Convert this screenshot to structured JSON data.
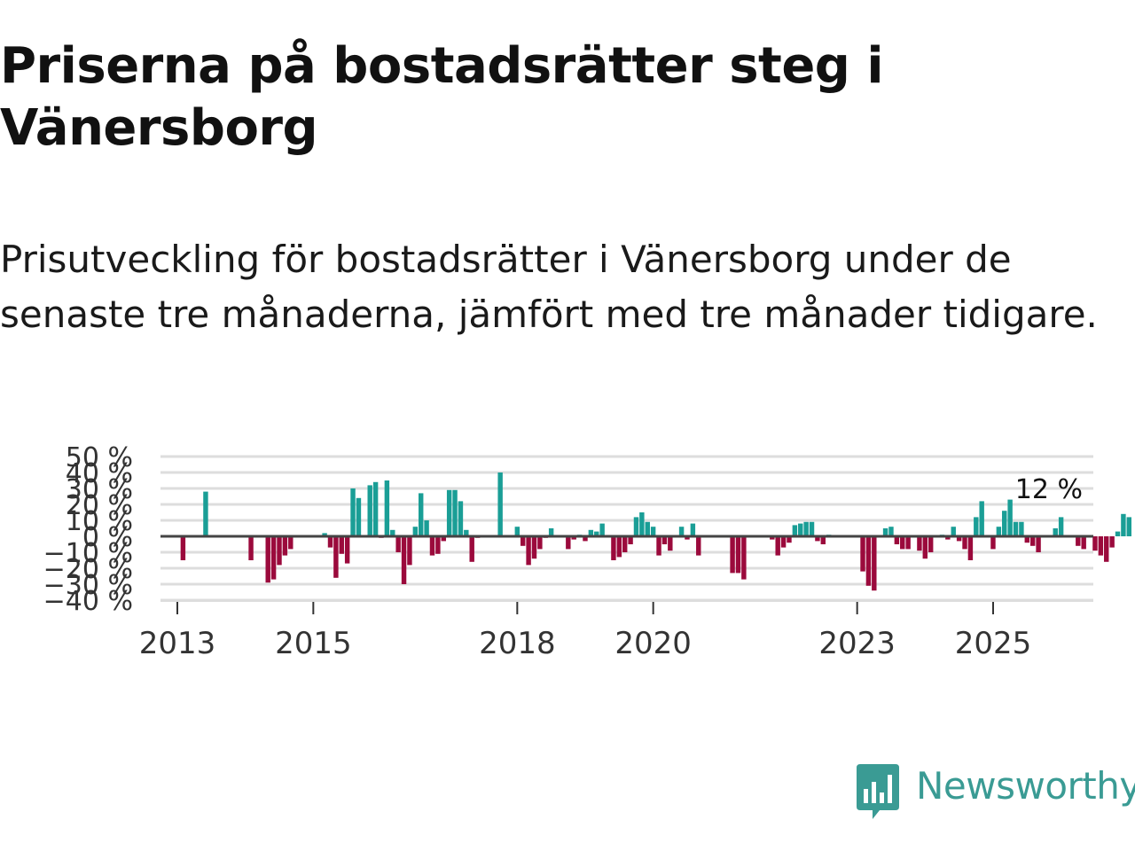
{
  "chart_data": {
    "type": "bar",
    "title": "Priserna på bostadsrätter steg i Vänersborg",
    "subtitle": "Prisutveckling för bostadsrätter i Vänersborg under de senaste tre månaderna, jämfört med tre månader tidigare.",
    "xlabel": "",
    "ylabel": "",
    "ylim": [
      -40,
      50
    ],
    "y_ticks": [
      50,
      40,
      30,
      20,
      10,
      0,
      -10,
      -20,
      -30,
      -40
    ],
    "y_tick_labels": [
      "50 %",
      "40 %",
      "30 %",
      "20 %",
      "10 %",
      "0 %",
      "−10 %",
      "−20 %",
      "−30 %",
      "−40 %"
    ],
    "x_ticks": [
      2013,
      2015,
      2018,
      2020,
      2023,
      2025
    ],
    "x_tick_labels": [
      "2013",
      "2015",
      "2018",
      "2020",
      "2023",
      "2025"
    ],
    "x_start": 2012.75,
    "x_step": 0.08333,
    "positive_color": "#1a9e96",
    "negative_color": "#9b0a3c",
    "values": [
      0,
      0,
      0,
      0,
      -15,
      0,
      0,
      0,
      28,
      0,
      0,
      0,
      0,
      0,
      0,
      0,
      -15,
      0,
      0,
      -29,
      -27,
      -18,
      -12,
      -8,
      0,
      0,
      0,
      0,
      0,
      2,
      -7,
      -26,
      -11,
      -17,
      30,
      24,
      0,
      32,
      34,
      -1,
      35,
      4,
      -10,
      -30,
      -18,
      6,
      27,
      10,
      -12,
      -11,
      -3,
      29,
      29,
      22,
      4,
      -16,
      -1,
      0,
      0,
      0,
      40,
      0,
      0,
      6,
      -6,
      -18,
      -14,
      -8,
      -1,
      5,
      0,
      0,
      -8,
      -2,
      1,
      -3,
      4,
      3,
      8,
      0,
      -15,
      -13,
      -10,
      -5,
      12,
      15,
      9,
      6,
      -12,
      -5,
      -9,
      0,
      6,
      -2,
      8,
      -12,
      0,
      0,
      0,
      0,
      0,
      -23,
      -23,
      -27,
      0,
      0,
      0,
      0,
      -2,
      -12,
      -7,
      -4,
      7,
      8,
      9,
      9,
      -3,
      -5,
      1,
      0,
      0,
      0,
      0,
      0,
      -22,
      -31,
      -34,
      0,
      5,
      6,
      -5,
      -8,
      -8,
      0,
      -9,
      -14,
      -10,
      0,
      1,
      -2,
      6,
      -3,
      -8,
      -15,
      12,
      22,
      0,
      -8,
      6,
      16,
      23,
      9,
      9,
      -4,
      -6,
      -10,
      0,
      0,
      5,
      12,
      0,
      0,
      -6,
      -8,
      0,
      -9,
      -12,
      -16,
      -7,
      3,
      14,
      12
    ],
    "annotation": "12 %"
  },
  "brand": {
    "name": "Newsworthy",
    "color": "#3a9b94"
  }
}
